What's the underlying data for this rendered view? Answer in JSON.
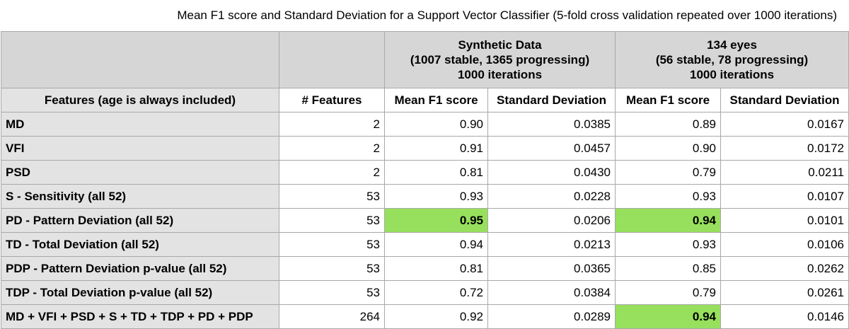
{
  "title": "Mean F1 score and Standard Deviation for a Support Vector Classifier (5-fold cross validation repeated over 1000 iterations)",
  "groups": [
    {
      "name": "Synthetic Data",
      "detail": "(1007 stable, 1365 progressing)",
      "iterations": "1000 iterations"
    },
    {
      "name": "134 eyes",
      "detail": "(56 stable, 78 progressing)",
      "iterations": "1000 iterations"
    }
  ],
  "columns": [
    "Features (age is always included)",
    "# Features",
    "Mean F1 score",
    "Standard Deviation",
    "Mean F1 score",
    "Standard Deviation"
  ],
  "highlight_color": "#97e05d",
  "rows": [
    {
      "feature": "MD",
      "n": "2",
      "syn_f1": "0.90",
      "syn_sd": "0.0385",
      "eye_f1": "0.89",
      "eye_sd": "0.0167",
      "hl_syn": false,
      "hl_eye": false
    },
    {
      "feature": "VFI",
      "n": "2",
      "syn_f1": "0.91",
      "syn_sd": "0.0457",
      "eye_f1": "0.90",
      "eye_sd": "0.0172",
      "hl_syn": false,
      "hl_eye": false
    },
    {
      "feature": "PSD",
      "n": "2",
      "syn_f1": "0.81",
      "syn_sd": "0.0430",
      "eye_f1": "0.79",
      "eye_sd": "0.0211",
      "hl_syn": false,
      "hl_eye": false
    },
    {
      "feature": "S - Sensitivity (all 52)",
      "n": "53",
      "syn_f1": "0.93",
      "syn_sd": "0.0228",
      "eye_f1": "0.93",
      "eye_sd": "0.0107",
      "hl_syn": false,
      "hl_eye": false
    },
    {
      "feature": "PD - Pattern Deviation (all 52)",
      "n": "53",
      "syn_f1": "0.95",
      "syn_sd": "0.0206",
      "eye_f1": "0.94",
      "eye_sd": "0.0101",
      "hl_syn": true,
      "hl_eye": true
    },
    {
      "feature": "TD - Total Deviation (all 52)",
      "n": "53",
      "syn_f1": "0.94",
      "syn_sd": "0.0213",
      "eye_f1": "0.93",
      "eye_sd": "0.0106",
      "hl_syn": false,
      "hl_eye": false
    },
    {
      "feature": "PDP - Pattern Deviation p-value (all 52)",
      "n": "53",
      "syn_f1": "0.81",
      "syn_sd": "0.0365",
      "eye_f1": "0.85",
      "eye_sd": "0.0262",
      "hl_syn": false,
      "hl_eye": false
    },
    {
      "feature": "TDP - Total Deviation p-value (all 52)",
      "n": "53",
      "syn_f1": "0.72",
      "syn_sd": "0.0384",
      "eye_f1": "0.79",
      "eye_sd": "0.0261",
      "hl_syn": false,
      "hl_eye": false
    },
    {
      "feature": "MD + VFI + PSD + S + TD + TDP + PD + PDP",
      "n": "264",
      "syn_f1": "0.92",
      "syn_sd": "0.0289",
      "eye_f1": "0.94",
      "eye_sd": "0.0146",
      "hl_syn": false,
      "hl_eye": true
    }
  ]
}
